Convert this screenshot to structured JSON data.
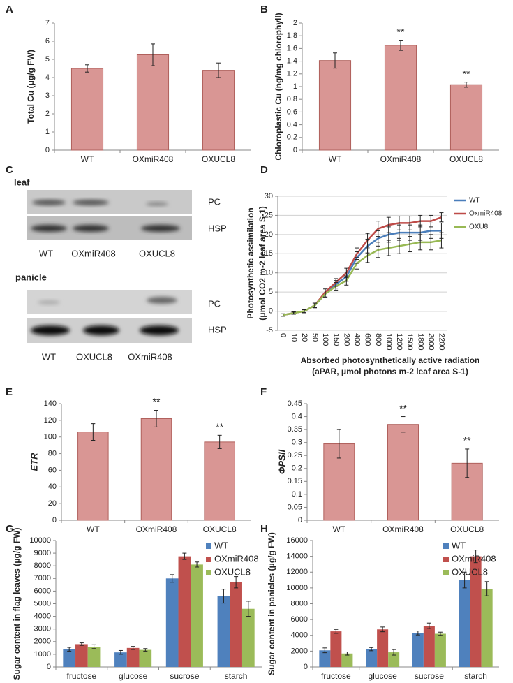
{
  "chart_data": [
    {
      "type": "bar",
      "label": "A",
      "ylabel": "Total Cu (μg/g FW)",
      "categories": [
        "WT",
        "OXmiR408",
        "OXUCL8"
      ],
      "values": [
        4.5,
        5.25,
        4.4
      ],
      "errors": [
        0.2,
        0.6,
        0.4
      ],
      "color": "#d99694",
      "ylim": [
        0,
        7
      ],
      "yticks": [
        0,
        1,
        2,
        3,
        4,
        5,
        6,
        7
      ],
      "grid": false
    },
    {
      "type": "bar",
      "label": "B",
      "ylabel": "Chloroplastic Cu (ng/mg chlorophyll)",
      "categories": [
        "WT",
        "OXmiR408",
        "OXUCL8"
      ],
      "values": [
        1.41,
        1.65,
        1.03
      ],
      "errors": [
        0.12,
        0.08,
        0.04
      ],
      "color": "#d99694",
      "ylim": [
        0,
        2
      ],
      "yticks": [
        0,
        0.2,
        0.4,
        0.6,
        0.8,
        1,
        1.2,
        1.4,
        1.6,
        1.8,
        2
      ],
      "grid": false,
      "annotations": [
        {
          "text": "**",
          "category": "OXmiR408"
        },
        {
          "text": "**",
          "category": "OXUCL8"
        }
      ]
    },
    {
      "type": "line",
      "label": "D",
      "ylabel": [
        "Photosynthetic assimilation",
        "(μmol CO2 m-2 leaf area S-1)"
      ],
      "xlabel": [
        "Absorbed photosynthetically active radiation",
        "(aPAR, μmol photons m-2 leaf area S-1)"
      ],
      "categories": [
        "0",
        "10",
        "20",
        "50",
        "100",
        "150",
        "200",
        "400",
        "600",
        "800",
        "1000",
        "1200",
        "1500",
        "1800",
        "2000",
        "2200"
      ],
      "ylim": [
        -5,
        30
      ],
      "yticks": [
        -5,
        0,
        5,
        10,
        15,
        20,
        25,
        30
      ],
      "grid": true,
      "legend": "right",
      "series": [
        {
          "name": "WT",
          "color": "#4a7ebb",
          "values": [
            -1,
            -0.5,
            0,
            1.5,
            4.5,
            7,
            9,
            14,
            17,
            19,
            20,
            20.5,
            20.5,
            20.5,
            21,
            21
          ],
          "errors": [
            0.3,
            0.3,
            0.4,
            0.6,
            0.8,
            1,
            1.2,
            1.5,
            1.8,
            2,
            2,
            2,
            2,
            2,
            2,
            2
          ]
        },
        {
          "name": "OxmiR408",
          "color": "#be4b48",
          "values": [
            -1,
            -0.5,
            0,
            1.5,
            5,
            7.5,
            10,
            15,
            18.5,
            21.5,
            22.5,
            23,
            23,
            23.5,
            23.5,
            24.5
          ],
          "errors": [
            0.3,
            0.3,
            0.4,
            0.6,
            0.8,
            1,
            1.2,
            1.5,
            1.8,
            2,
            2,
            1.8,
            1.8,
            1.5,
            1.5,
            1.2
          ]
        },
        {
          "name": "OXU8",
          "color": "#98b954",
          "values": [
            -1,
            -0.5,
            0,
            1.5,
            4.5,
            6.5,
            8,
            12.5,
            14.5,
            16,
            16.5,
            17,
            17.5,
            18,
            18,
            18.5
          ],
          "errors": [
            0.3,
            0.3,
            0.4,
            0.6,
            0.8,
            1,
            1.2,
            1.5,
            1.8,
            2,
            2,
            2,
            2,
            2,
            2,
            2
          ]
        }
      ]
    },
    {
      "type": "bar",
      "label": "E",
      "ylabel": "ETR",
      "categories": [
        "WT",
        "OXmiR408",
        "OXUCL8"
      ],
      "values": [
        106,
        122,
        94
      ],
      "errors": [
        10,
        10,
        8
      ],
      "color": "#d99694",
      "ylim": [
        0,
        140
      ],
      "yticks": [
        0,
        20,
        40,
        60,
        80,
        100,
        120,
        140
      ],
      "grid": false,
      "annotations": [
        {
          "text": "**",
          "category": "OXmiR408"
        },
        {
          "text": "**",
          "category": "OXUCL8"
        }
      ]
    },
    {
      "type": "bar",
      "label": "F",
      "ylabel": "ΦPSII",
      "categories": [
        "WT",
        "OXmiR408",
        "OXUCL8"
      ],
      "values": [
        0.295,
        0.37,
        0.22
      ],
      "errors": [
        0.055,
        0.03,
        0.055
      ],
      "color": "#d99694",
      "ylim": [
        0,
        0.45
      ],
      "yticks": [
        0,
        0.05,
        0.1,
        0.15,
        0.2,
        0.25,
        0.3,
        0.35,
        0.4,
        0.45
      ],
      "grid": false,
      "annotations": [
        {
          "text": "**",
          "category": "OXmiR408"
        },
        {
          "text": "**",
          "category": "OXUCL8"
        }
      ]
    },
    {
      "type": "bar",
      "label": "G",
      "ylabel": "Sugar content in flag leaves (μg/g FW)",
      "categories": [
        "fructose",
        "glucose",
        "sucrose",
        "starch"
      ],
      "ylim": [
        0,
        10000
      ],
      "yticks": [
        0,
        1000,
        2000,
        3000,
        4000,
        5000,
        6000,
        7000,
        8000,
        9000,
        10000
      ],
      "grid": false,
      "legend": "upper right",
      "series": [
        {
          "name": "WT",
          "color": "#4f81bd",
          "values": [
            1400,
            1150,
            7000,
            5600
          ],
          "errors": [
            150,
            150,
            300,
            550
          ]
        },
        {
          "name": "OXmiR408",
          "color": "#c0504d",
          "values": [
            1800,
            1500,
            8750,
            6700
          ],
          "errors": [
            100,
            120,
            250,
            450
          ]
        },
        {
          "name": "OXUCL8",
          "color": "#9bbb59",
          "values": [
            1600,
            1350,
            8100,
            4600
          ],
          "errors": [
            150,
            100,
            200,
            600
          ]
        }
      ]
    },
    {
      "type": "bar",
      "label": "H",
      "ylabel": "Sugar content in panicles (μg/g FW)",
      "categories": [
        "fructose",
        "glucose",
        "sucrose",
        "starch"
      ],
      "ylim": [
        0,
        16000
      ],
      "yticks": [
        0,
        2000,
        4000,
        6000,
        8000,
        10000,
        12000,
        14000,
        16000
      ],
      "grid": false,
      "legend": "upper right",
      "series": [
        {
          "name": "WT",
          "color": "#4f81bd",
          "values": [
            2100,
            2250,
            4300,
            11000
          ],
          "errors": [
            300,
            200,
            250,
            1000
          ]
        },
        {
          "name": "OXmiR408",
          "color": "#c0504d",
          "values": [
            4500,
            4750,
            5200,
            14000
          ],
          "errors": [
            250,
            300,
            350,
            800
          ]
        },
        {
          "name": "OXUCL8",
          "color": "#9bbb59",
          "values": [
            1700,
            1850,
            4200,
            9900
          ],
          "errors": [
            200,
            350,
            200,
            900
          ]
        }
      ]
    }
  ],
  "panel_c": {
    "label": "C",
    "groups": [
      {
        "title": "leaf",
        "rows": [
          "PC",
          "HSP"
        ],
        "lanes": [
          "WT",
          "OXmiR408",
          "OXUCL8"
        ]
      },
      {
        "title": "panicle",
        "rows": [
          "PC",
          "HSP"
        ],
        "lanes": [
          "WT",
          "OXUCL8",
          "OXmiR408"
        ]
      }
    ]
  }
}
